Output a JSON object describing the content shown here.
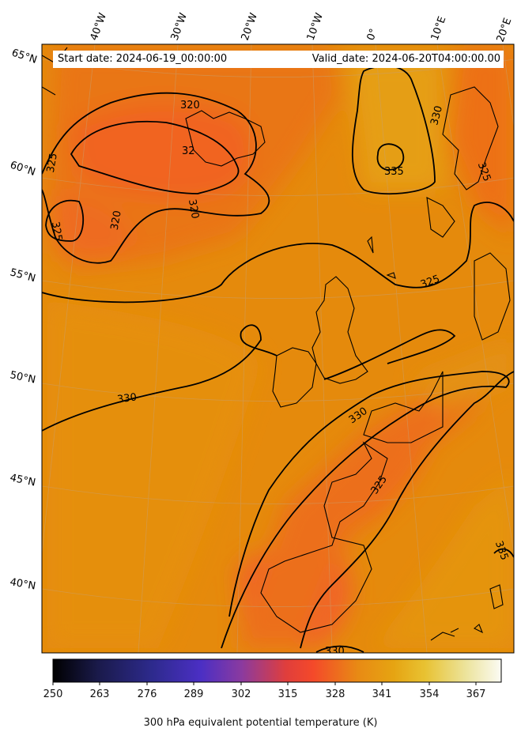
{
  "header": {
    "start_label": "Start date: 2024-06-19_00:00:00",
    "valid_label": "Valid_date: 2024-06-20T04:00:00.00"
  },
  "map": {
    "projection": "conic",
    "field": "300 hPa equivalent potential temperature",
    "lon_labels": [
      "40°W",
      "30°W",
      "20°W",
      "10°W",
      "0°",
      "10°E",
      "20°E"
    ],
    "lat_labels": [
      "65°N",
      "60°N",
      "55°N",
      "50°N",
      "45°N",
      "40°N"
    ],
    "contour_labels": [
      "320",
      "320",
      "32",
      "320",
      "320",
      "325",
      "325",
      "330",
      "335",
      "325",
      "325",
      "330",
      "330",
      "325",
      "335",
      "330"
    ],
    "colors": {
      "dominant": "#e58a0c",
      "warm_band": "#f06a1e",
      "cold_core": "#f25e22",
      "coast": "#000000",
      "contour": "#000000",
      "graticule": "#c8a070"
    }
  },
  "colorbar": {
    "title": "300 hPa equivalent potential temperature (K)",
    "ticks": [
      "250",
      "263",
      "276",
      "289",
      "302",
      "315",
      "328",
      "341",
      "354",
      "367"
    ],
    "range": [
      250,
      372
    ],
    "colormap": "CMRmap"
  }
}
